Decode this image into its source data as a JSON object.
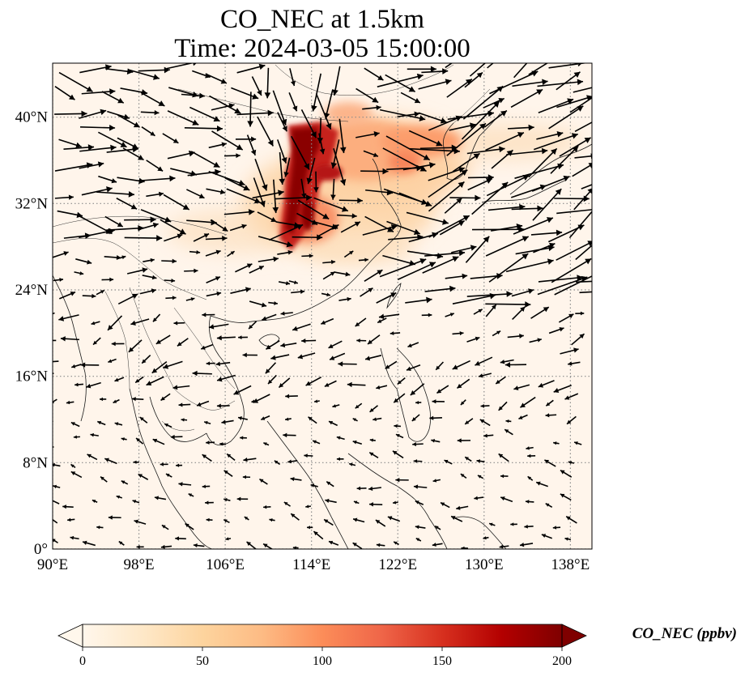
{
  "title": {
    "line1": "CO_NEC at 1.5km",
    "line2": "Time: 2024-03-05 15:00:00"
  },
  "map": {
    "lon_range": [
      90,
      140
    ],
    "lat_range": [
      0,
      45
    ],
    "background_color": "#fff5eb",
    "x_ticks": [
      {
        "value": 90,
        "label": "90°E"
      },
      {
        "value": 98,
        "label": "98°E"
      },
      {
        "value": 106,
        "label": "106°E"
      },
      {
        "value": 114,
        "label": "114°E"
      },
      {
        "value": 122,
        "label": "122°E"
      },
      {
        "value": 130,
        "label": "130°E"
      },
      {
        "value": 138,
        "label": "138°E"
      }
    ],
    "y_ticks": [
      {
        "value": 0,
        "label": "0°"
      },
      {
        "value": 8,
        "label": "8°N"
      },
      {
        "value": 16,
        "label": "16°N"
      },
      {
        "value": 24,
        "label": "24°N"
      },
      {
        "value": 32,
        "label": "32°N"
      },
      {
        "value": 40,
        "label": "40°N"
      }
    ],
    "gridlines": true
  },
  "colorbar": {
    "label": "CO_NEC (ppbv)",
    "min": 0,
    "max": 200,
    "extend": "both",
    "colormap": "OrRd",
    "colors": [
      "#fff7ec",
      "#fee8c8",
      "#fdd49e",
      "#fdbb84",
      "#fc8d59",
      "#ef6548",
      "#d7301f",
      "#b30000",
      "#7f0000"
    ],
    "ticks": [
      {
        "value": 0,
        "label": "0"
      },
      {
        "value": 50,
        "label": "50"
      },
      {
        "value": 100,
        "label": "100"
      },
      {
        "value": 150,
        "label": "150"
      },
      {
        "value": 200,
        "label": "200"
      }
    ]
  }
}
